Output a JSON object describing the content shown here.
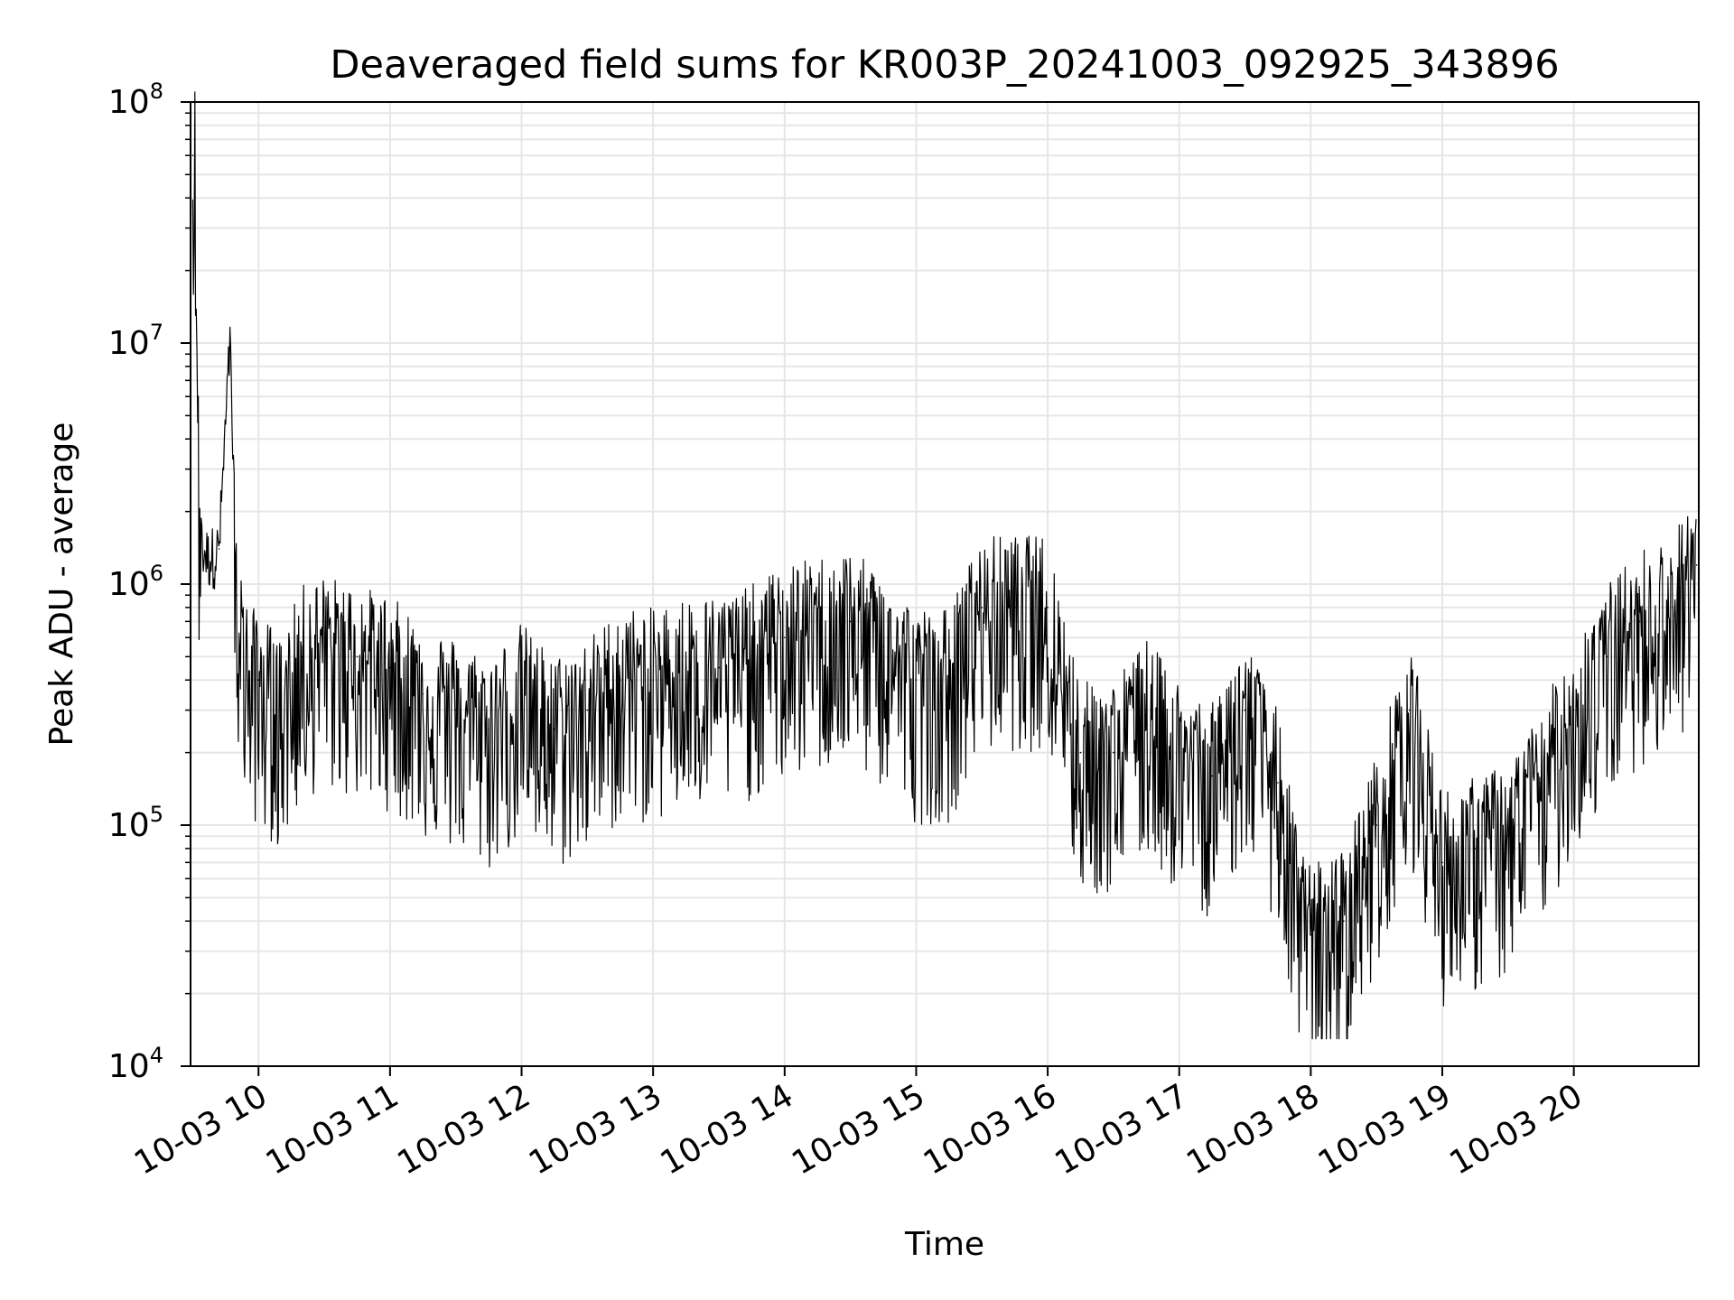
{
  "chart_data": {
    "type": "line",
    "title": "Deaveraged field sums for KR003P_20241003_092925_343896",
    "xlabel": "Time",
    "ylabel": "Peak ADU - average",
    "y_scale": "log",
    "ylim": [
      10000,
      100000000
    ],
    "xlim": [
      "2024-10-03 09:29",
      "2024-10-03 20:57"
    ],
    "grid": true,
    "line_color": "#000000",
    "grid_color": "#e6e6e6",
    "x_ticks": [
      {
        "value": "2024-10-03 10:00",
        "label": "10-03 10"
      },
      {
        "value": "2024-10-03 11:00",
        "label": "10-03 11"
      },
      {
        "value": "2024-10-03 12:00",
        "label": "10-03 12"
      },
      {
        "value": "2024-10-03 13:00",
        "label": "10-03 13"
      },
      {
        "value": "2024-10-03 14:00",
        "label": "10-03 14"
      },
      {
        "value": "2024-10-03 15:00",
        "label": "10-03 15"
      },
      {
        "value": "2024-10-03 16:00",
        "label": "10-03 16"
      },
      {
        "value": "2024-10-03 17:00",
        "label": "10-03 17"
      },
      {
        "value": "2024-10-03 18:00",
        "label": "10-03 18"
      },
      {
        "value": "2024-10-03 19:00",
        "label": "10-03 19"
      },
      {
        "value": "2024-10-03 20:00",
        "label": "10-03 20"
      }
    ],
    "y_ticks": [
      {
        "value": 10000,
        "base": "10",
        "exp": "4"
      },
      {
        "value": 100000,
        "base": "10",
        "exp": "5"
      },
      {
        "value": 1000000,
        "base": "10",
        "exp": "6"
      },
      {
        "value": 10000000,
        "base": "10",
        "exp": "7"
      },
      {
        "value": 100000000,
        "base": "10",
        "exp": "8"
      }
    ],
    "series": [
      {
        "x": [
          "2024-10-03 09:30",
          "2024-10-03 09:31",
          "2024-10-03 09:33",
          "2024-10-03 09:37",
          "2024-10-03 09:42",
          "2024-10-03 09:47",
          "2024-10-03 09:50",
          "2024-10-03 09:55",
          "2024-10-03 10:00",
          "2024-10-03 10:10",
          "2024-10-03 10:20",
          "2024-10-03 10:30",
          "2024-10-03 10:45",
          "2024-10-03 11:00",
          "2024-10-03 11:15",
          "2024-10-03 11:30",
          "2024-10-03 11:45",
          "2024-10-03 12:00",
          "2024-10-03 12:15",
          "2024-10-03 12:30",
          "2024-10-03 12:45",
          "2024-10-03 13:00",
          "2024-10-03 13:15",
          "2024-10-03 13:30",
          "2024-10-03 13:45",
          "2024-10-03 14:00",
          "2024-10-03 14:15",
          "2024-10-03 14:30",
          "2024-10-03 14:45",
          "2024-10-03 15:00",
          "2024-10-03 15:15",
          "2024-10-03 15:30",
          "2024-10-03 15:45",
          "2024-10-03 16:00",
          "2024-10-03 16:15",
          "2024-10-03 16:30",
          "2024-10-03 16:45",
          "2024-10-03 17:00",
          "2024-10-03 17:15",
          "2024-10-03 17:30",
          "2024-10-03 17:45",
          "2024-10-03 17:55",
          "2024-10-03 18:00",
          "2024-10-03 18:15",
          "2024-10-03 18:30",
          "2024-10-03 18:45",
          "2024-10-03 19:00",
          "2024-10-03 19:15",
          "2024-10-03 19:30",
          "2024-10-03 19:45",
          "2024-10-03 20:00",
          "2024-10-03 20:15",
          "2024-10-03 20:30",
          "2024-10-03 20:45",
          "2024-10-03 20:56"
        ],
        "y": [
          60000000,
          70000000,
          1500000,
          1300000,
          1400000,
          10000000,
          900000,
          400000,
          400000,
          300000,
          500000,
          550000,
          500000,
          450000,
          350000,
          300000,
          250000,
          350000,
          250000,
          300000,
          400000,
          400000,
          450000,
          450000,
          500000,
          600000,
          650000,
          700000,
          550000,
          400000,
          400000,
          800000,
          800000,
          800000,
          200000,
          200000,
          300000,
          200000,
          160000,
          300000,
          150000,
          40000,
          35000,
          40000,
          100000,
          300000,
          70000,
          80000,
          90000,
          150000,
          300000,
          500000,
          700000,
          800000,
          1200000
        ]
      }
    ]
  }
}
